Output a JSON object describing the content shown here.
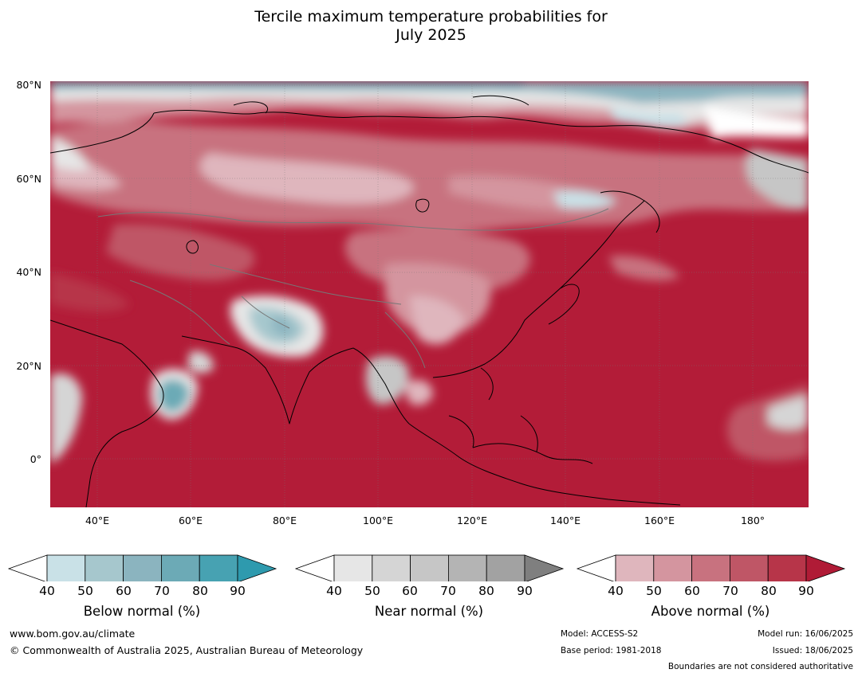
{
  "title_line1": "Tercile maximum temperature probabilities for",
  "title_line2": "July 2025",
  "map": {
    "lat_labels": [
      "80°N",
      "60°N",
      "40°N",
      "20°N",
      "0°"
    ],
    "lon_labels": [
      "40°E",
      "60°E",
      "80°E",
      "100°E",
      "120°E",
      "140°E",
      "160°E",
      "180°"
    ],
    "extent": {
      "lon_min": 30,
      "lon_max": 192,
      "lat_min": -10,
      "lat_max": 80
    }
  },
  "legends": [
    {
      "title": "Below normal (%)",
      "ticks": [
        "40",
        "50",
        "60",
        "70",
        "80",
        "90"
      ],
      "colors": [
        "#c9e1e7",
        "#a6c7cd",
        "#8bb4bf",
        "#6caab6",
        "#47a2b2",
        "#2e9aae"
      ]
    },
    {
      "title": "Near normal (%)",
      "ticks": [
        "40",
        "50",
        "60",
        "70",
        "80",
        "90"
      ],
      "colors": [
        "#e6e6e6",
        "#d5d5d5",
        "#c6c6c6",
        "#b4b4b4",
        "#a2a2a2",
        "#7f7f7f"
      ]
    },
    {
      "title": "Above normal (%)",
      "ticks": [
        "40",
        "50",
        "60",
        "70",
        "80",
        "90"
      ],
      "colors": [
        "#dfb6bd",
        "#d4959f",
        "#c8727f",
        "#bf5666",
        "#b73549",
        "#b01b36"
      ]
    }
  ],
  "footer": {
    "website": "www.bom.gov.au/climate",
    "copyright": "© Commonwealth of Australia 2025, Australian Bureau of Meteorology",
    "model": "Model: ACCESS-S2",
    "base_period": "Base period: 1981-2018",
    "model_run": "Model run: 16/06/2025",
    "issued": "Issued: 18/06/2025",
    "disclaimer": "Boundaries are not considered authoritative"
  }
}
